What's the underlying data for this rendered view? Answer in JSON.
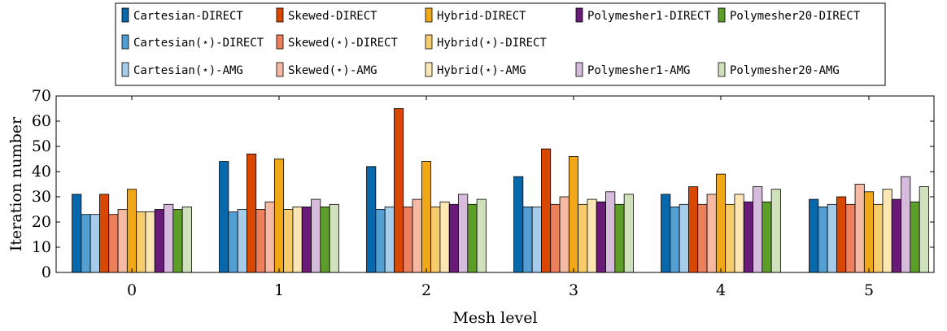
{
  "chart_data": {
    "type": "bar",
    "xlabel": "Mesh level",
    "ylabel": "Iteration number",
    "ylim": [
      0,
      70
    ],
    "yticks": [
      0,
      10,
      20,
      30,
      40,
      50,
      60,
      70
    ],
    "categories": [
      "0",
      "1",
      "2",
      "3",
      "4",
      "5"
    ],
    "legend_placement": "top",
    "grid": false,
    "series": [
      {
        "name": "Cartesian-DIRECT",
        "color": "#0868ac",
        "values": [
          31,
          44,
          42,
          38,
          31,
          29
        ]
      },
      {
        "name": "Cartesian(⋆)-DIRECT",
        "color": "#519fd3",
        "values": [
          23,
          24,
          25,
          26,
          26,
          26
        ]
      },
      {
        "name": "Cartesian(⋆)-AMG",
        "color": "#a5cdeb",
        "values": [
          23,
          25,
          26,
          26,
          27,
          27
        ]
      },
      {
        "name": "Skewed-DIRECT",
        "color": "#d94801",
        "values": [
          31,
          47,
          65,
          49,
          34,
          30
        ]
      },
      {
        "name": "Skewed(⋆)-DIRECT",
        "color": "#ec7f5c",
        "values": [
          23,
          25,
          26,
          27,
          27,
          27
        ]
      },
      {
        "name": "Skewed(⋆)-AMG",
        "color": "#f6b9a3",
        "values": [
          25,
          28,
          29,
          30,
          31,
          35
        ]
      },
      {
        "name": "Hybrid-DIRECT",
        "color": "#f0a818",
        "values": [
          33,
          45,
          44,
          46,
          39,
          32
        ]
      },
      {
        "name": "Hybrid(⋆)-DIRECT",
        "color": "#f6cc6c",
        "values": [
          24,
          25,
          26,
          27,
          27,
          27
        ]
      },
      {
        "name": "Hybrid(⋆)-AMG",
        "color": "#fbe6b4",
        "values": [
          24,
          26,
          28,
          29,
          31,
          33
        ]
      },
      {
        "name": "Polymesher1-DIRECT",
        "color": "#6a1b79",
        "values": [
          25,
          26,
          27,
          28,
          28,
          29
        ]
      },
      {
        "name": "Polymesher1-AMG",
        "color": "#d7bbdd",
        "values": [
          27,
          29,
          31,
          32,
          34,
          38
        ]
      },
      {
        "name": "Polymesher20-DIRECT",
        "color": "#5c9e28",
        "values": [
          25,
          26,
          27,
          27,
          28,
          28
        ]
      },
      {
        "name": "Polymesher20-AMG",
        "color": "#cfe2bb",
        "values": [
          26,
          27,
          29,
          31,
          33,
          34
        ]
      }
    ],
    "legend_rows": [
      [
        0,
        3,
        6,
        9,
        11
      ],
      [
        1,
        4,
        7
      ],
      [
        2,
        5,
        8,
        10,
        12
      ]
    ]
  }
}
